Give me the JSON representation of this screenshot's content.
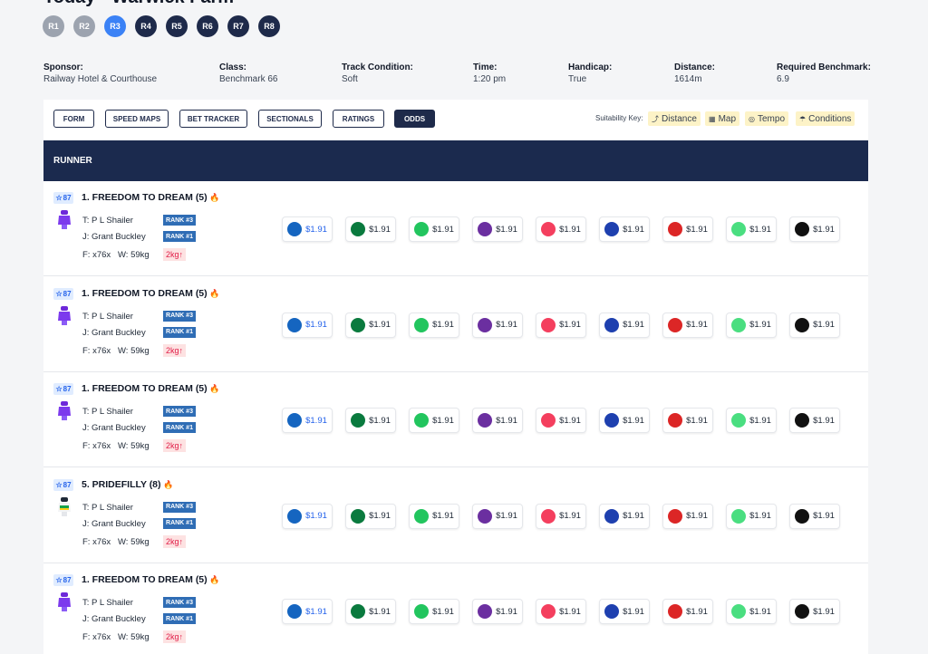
{
  "header": {
    "title": "Today - Warwick Farm",
    "races": [
      "R1",
      "R2",
      "R3",
      "R4",
      "R5",
      "R6",
      "R7",
      "R8"
    ],
    "active_race": 2,
    "completed_races": [
      0,
      1
    ]
  },
  "race_info": [
    {
      "label": "Sponsor:",
      "value": "Railway Hotel & Courthouse"
    },
    {
      "label": "Class:",
      "value": "Benchmark 66"
    },
    {
      "label": "Track Condition:",
      "value": "Soft"
    },
    {
      "label": "Time:",
      "value": "1:20 pm"
    },
    {
      "label": "Handicap:",
      "value": "True"
    },
    {
      "label": "Distance:",
      "value": "1614m"
    },
    {
      "label": "Required Benchmark:",
      "value": "6.9"
    }
  ],
  "tabs": {
    "items": [
      "FORM",
      "SPEED MAPS",
      "BET TRACKER",
      "SECTIONALS",
      "RATINGS",
      "ODDS"
    ],
    "active": 5
  },
  "suitability": {
    "label": "Suitability Key:",
    "items": [
      "Distance",
      "Map",
      "Tempo",
      "Conditions"
    ]
  },
  "table": {
    "header": "RUNNER",
    "rows": [
      {
        "rating": "87",
        "name": "1. FREEDOM TO DREAM (5)",
        "trainer": "T: P L Shailer",
        "jockey": "J: Grant Buckley",
        "form": "F: x76x",
        "weight": "W: 59kg",
        "ranks": [
          "RANK #3",
          "RANK #1"
        ],
        "weight_change": "2kg",
        "odds": [
          "$1.91",
          "$1.91",
          "$1.91",
          "$1.91",
          "$1.91",
          "$1.91",
          "$1.91",
          "$1.91",
          "$1.91"
        ]
      },
      {
        "rating": "87",
        "name": "1. FREEDOM TO DREAM (5)",
        "trainer": "T: P L Shailer",
        "jockey": "J: Grant Buckley",
        "form": "F: x76x",
        "weight": "W: 59kg",
        "ranks": [
          "RANK #3",
          "RANK #1"
        ],
        "weight_change": "2kg",
        "odds": [
          "$1.91",
          "$1.91",
          "$1.91",
          "$1.91",
          "$1.91",
          "$1.91",
          "$1.91",
          "$1.91",
          "$1.91"
        ]
      },
      {
        "rating": "87",
        "name": "1. FREEDOM TO DREAM (5)",
        "trainer": "T: P L Shailer",
        "jockey": "J: Grant Buckley",
        "form": "F: x76x",
        "weight": "W: 59kg",
        "ranks": [
          "RANK #3",
          "RANK #1"
        ],
        "weight_change": "2kg",
        "odds": [
          "$1.91",
          "$1.91",
          "$1.91",
          "$1.91",
          "$1.91",
          "$1.91",
          "$1.91",
          "$1.91",
          "$1.91"
        ]
      },
      {
        "rating": "87",
        "name": "5. PRIDEFILLY (8)",
        "trainer": "T: P L Shailer",
        "jockey": "J: Grant Buckley",
        "form": "F: x76x",
        "weight": "W: 59kg",
        "ranks": [
          "RANK #3",
          "RANK #1"
        ],
        "weight_change": "2kg",
        "odds": [
          "$1.91",
          "$1.91",
          "$1.91",
          "$1.91",
          "$1.91",
          "$1.91",
          "$1.91",
          "$1.91",
          "$1.91"
        ]
      },
      {
        "rating": "87",
        "name": "1. FREEDOM TO DREAM (5)",
        "trainer": "T: P L Shailer",
        "jockey": "J: Grant Buckley",
        "form": "F: x76x",
        "weight": "W: 59kg",
        "ranks": [
          "RANK #3",
          "RANK #1"
        ],
        "weight_change": "2kg",
        "odds": [
          "$1.91",
          "$1.91",
          "$1.91",
          "$1.91",
          "$1.91",
          "$1.91",
          "$1.91",
          "$1.91",
          "$1.91"
        ]
      }
    ]
  }
}
